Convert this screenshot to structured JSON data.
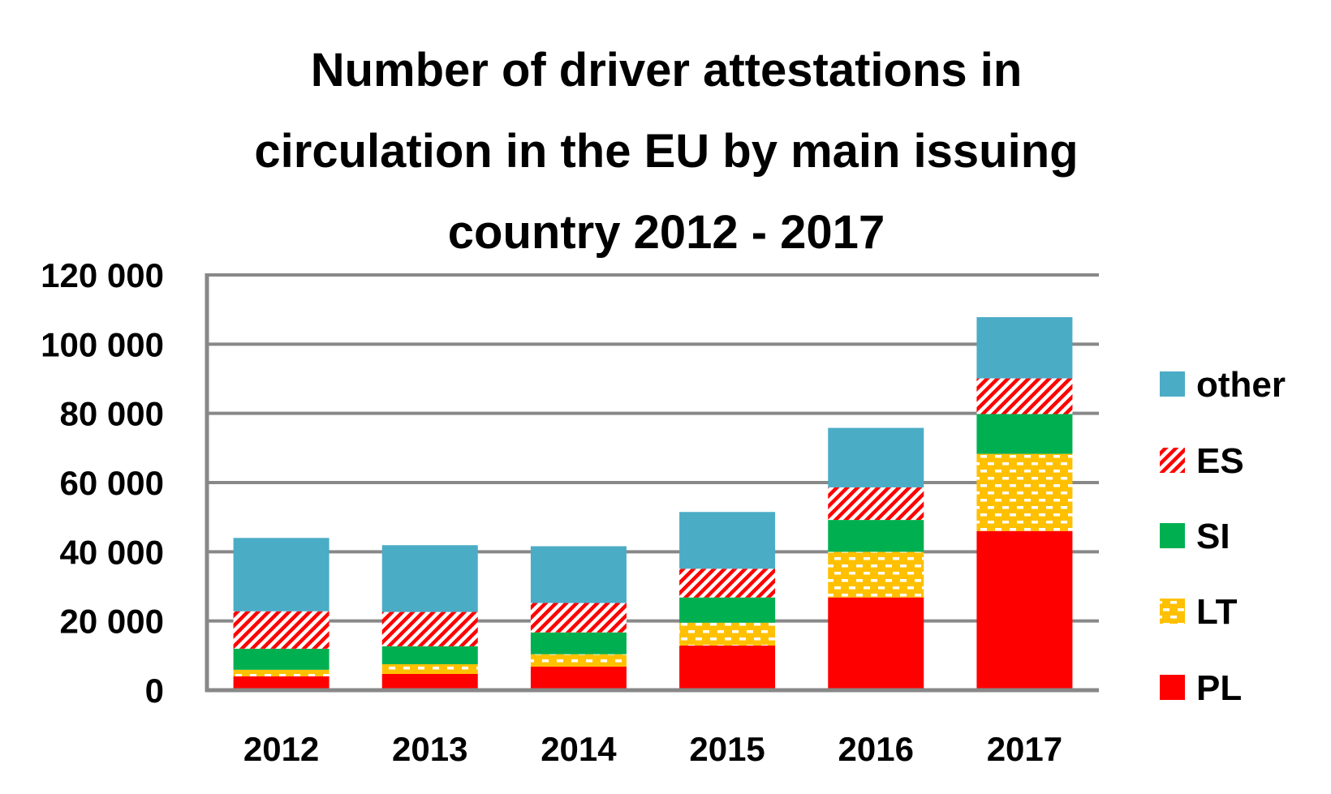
{
  "chart_data": {
    "type": "bar",
    "stacked": true,
    "title": "Number of driver attestations in circulation in the EU by main issuing country 2012 - 2017",
    "title_lines": [
      "Number of driver attestations in",
      "circulation in the EU by main issuing",
      "country 2012 - 2017"
    ],
    "xlabel": "",
    "ylabel": "",
    "categories": [
      "2012",
      "2013",
      "2014",
      "2015",
      "2016",
      "2017"
    ],
    "ylim": [
      0,
      120000
    ],
    "yticks": [
      0,
      20000,
      40000,
      60000,
      80000,
      100000,
      120000
    ],
    "ytick_labels": [
      "0",
      "20 000",
      "40 000",
      "60 000",
      "80 000",
      "100 000",
      "120 000"
    ],
    "grid": true,
    "legend_position": "right",
    "series": [
      {
        "name": "PL",
        "color": "#FF0000",
        "pattern": "solid",
        "values": [
          4000,
          4700,
          6800,
          12900,
          26800,
          46000
        ]
      },
      {
        "name": "LT",
        "color": "#FFC000",
        "pattern": "dashes",
        "values": [
          1900,
          2800,
          3600,
          6600,
          13200,
          22300
        ]
      },
      {
        "name": "SI",
        "color": "#00B050",
        "pattern": "solid",
        "values": [
          6100,
          5200,
          6300,
          7300,
          9200,
          11500
        ]
      },
      {
        "name": "ES",
        "color": "#FF0000",
        "pattern": "diagonal",
        "values": [
          10800,
          9900,
          8500,
          8300,
          9400,
          10300
        ]
      },
      {
        "name": "other",
        "color": "#4BACC6",
        "pattern": "solid",
        "values": [
          21200,
          19300,
          16400,
          16400,
          17200,
          17700
        ]
      }
    ],
    "legend_order": [
      "other",
      "ES",
      "SI",
      "LT",
      "PL"
    ]
  },
  "colors": {
    "axis": "#888888",
    "grid": "#888888",
    "text": "#000000"
  }
}
